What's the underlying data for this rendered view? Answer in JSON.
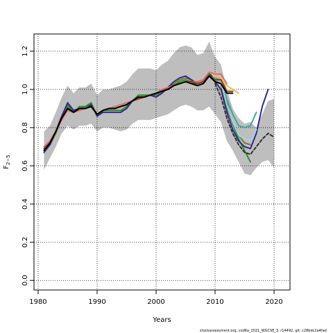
{
  "chart_data": {
    "type": "line",
    "title": "",
    "xlabel": "Years",
    "ylabel": "F",
    "ylabel_subscript": "2−5",
    "xlim": [
      1979.3,
      2022.7
    ],
    "ylim": [
      -0.05,
      1.29
    ],
    "x_ticks": [
      1980,
      1990,
      2000,
      2010,
      2020
    ],
    "y_ticks": [
      0.0,
      0.2,
      0.4,
      0.6,
      0.8,
      1.0,
      1.2
    ],
    "grid": true,
    "band": {
      "color": "#bebebe",
      "x": [
        1981,
        1982,
        1983,
        1984,
        1985,
        1986,
        1987,
        1988,
        1989,
        1990,
        1991,
        1992,
        1993,
        1994,
        1995,
        1996,
        1997,
        1998,
        1999,
        2000,
        2001,
        2002,
        2003,
        2004,
        2005,
        2006,
        2007,
        2008,
        2009,
        2010,
        2011,
        2012,
        2013,
        2014,
        2015,
        2016,
        2017,
        2018,
        2019,
        2020
      ],
      "upper": [
        0.78,
        0.81,
        0.88,
        0.96,
        1.02,
        0.98,
        1.01,
        1.01,
        1.03,
        0.97,
        1.0,
        1.0,
        1.01,
        1.02,
        1.04,
        1.08,
        1.11,
        1.11,
        1.11,
        1.1,
        1.13,
        1.15,
        1.19,
        1.22,
        1.23,
        1.22,
        1.18,
        1.19,
        1.25,
        1.17,
        1.13,
        1.0,
        0.9,
        0.85,
        0.82,
        0.83,
        0.8,
        0.87,
        0.94,
        0.95
      ],
      "lower": [
        0.58,
        0.64,
        0.7,
        0.77,
        0.81,
        0.79,
        0.81,
        0.81,
        0.82,
        0.78,
        0.8,
        0.8,
        0.79,
        0.78,
        0.79,
        0.82,
        0.84,
        0.84,
        0.84,
        0.85,
        0.86,
        0.87,
        0.89,
        0.91,
        0.92,
        0.91,
        0.89,
        0.89,
        0.91,
        0.87,
        0.83,
        0.73,
        0.68,
        0.62,
        0.56,
        0.55,
        0.59,
        0.62,
        0.63,
        0.59
      ]
    },
    "series": [
      {
        "color": "#7a7a2a",
        "x": [
          1981,
          1982,
          1983,
          1984,
          1985,
          1986,
          1987,
          1988,
          1989,
          1990,
          1991,
          1992,
          1993,
          1994,
          1995,
          1996,
          1997,
          1998,
          1999,
          2000,
          2001,
          2002,
          2003,
          2004,
          2005,
          2006,
          2007,
          2008,
          2009,
          2010,
          2011,
          2012,
          2013,
          2014,
          2015,
          2016
        ],
        "values": [
          0.67,
          0.71,
          0.77,
          0.85,
          0.91,
          0.88,
          0.9,
          0.91,
          0.92,
          0.87,
          0.89,
          0.9,
          0.9,
          0.91,
          0.92,
          0.94,
          0.96,
          0.96,
          0.97,
          0.98,
          0.99,
          1.01,
          1.03,
          1.05,
          1.06,
          1.05,
          1.03,
          1.04,
          1.08,
          1.05,
          1.03,
          0.9,
          0.82,
          0.76,
          0.72,
          0.71
        ]
      },
      {
        "color": "#2c8d2c",
        "x": [
          1981,
          1982,
          1983,
          1984,
          1985,
          1986,
          1987,
          1988,
          1989,
          1990,
          1991,
          1992,
          1993,
          1994,
          1995,
          1996,
          1997,
          1998,
          1999,
          2000,
          2001,
          2002,
          2003,
          2004,
          2005,
          2006,
          2007,
          2008,
          2009,
          2010,
          2011,
          2012,
          2013,
          2014,
          2015,
          2016
        ],
        "values": [
          0.68,
          0.72,
          0.78,
          0.86,
          0.92,
          0.88,
          0.91,
          0.91,
          0.93,
          0.86,
          0.89,
          0.89,
          0.89,
          0.89,
          0.91,
          0.94,
          0.97,
          0.97,
          0.97,
          0.97,
          0.99,
          1.0,
          1.02,
          1.04,
          1.05,
          1.04,
          1.02,
          1.03,
          1.08,
          1.05,
          1.04,
          0.93,
          0.82,
          0.74,
          0.68,
          0.62
        ]
      },
      {
        "color": "#2e2b8f",
        "x": [
          1981,
          1982,
          1983,
          1984,
          1985,
          1986,
          1987,
          1988,
          1989,
          1990,
          1991,
          1992,
          1993,
          1994,
          1995,
          1996,
          1997,
          1998,
          1999,
          2000,
          2001,
          2002,
          2003,
          2004,
          2005,
          2006,
          2007,
          2008,
          2009,
          2010,
          2011,
          2012,
          2013,
          2014,
          2015,
          2016,
          2017,
          2018,
          2019
        ],
        "values": [
          0.67,
          0.71,
          0.78,
          0.86,
          0.93,
          0.89,
          0.9,
          0.9,
          0.92,
          0.86,
          0.88,
          0.88,
          0.88,
          0.88,
          0.9,
          0.94,
          0.96,
          0.96,
          0.97,
          0.96,
          0.98,
          1.01,
          1.04,
          1.06,
          1.07,
          1.05,
          1.03,
          1.04,
          1.09,
          1.04,
          1.0,
          0.88,
          0.79,
          0.73,
          0.7,
          0.69,
          0.77,
          0.91,
          1.0
        ]
      },
      {
        "color": "#3aa6a6",
        "x": [
          2010,
          2011,
          2012,
          2013,
          2014,
          2015,
          2016,
          2017
        ],
        "values": [
          1.06,
          1.05,
          0.95,
          0.87,
          0.81,
          0.8,
          0.81,
          0.88
        ]
      },
      {
        "color": "#a8d0e6",
        "x": [
          2010,
          2011,
          2012,
          2013,
          2014,
          2015,
          2016,
          2017
        ],
        "values": [
          1.05,
          1.04,
          0.92,
          0.83,
          0.76,
          0.74,
          0.73,
          0.79
        ]
      },
      {
        "color": "#e8c060",
        "x": [
          2009,
          2010,
          2011,
          2012,
          2013,
          2014
        ],
        "values": [
          1.09,
          1.07,
          1.06,
          1.02,
          1.0,
          0.98
        ]
      },
      {
        "color": "#e06a6a",
        "x": [
          1981,
          1982,
          1983,
          1984,
          1985,
          1986,
          1987,
          1988,
          1989,
          1990,
          1991,
          1992,
          1993,
          1994,
          1995,
          1996,
          1997,
          1998,
          1999,
          2000,
          2001,
          2002,
          2003,
          2004,
          2005,
          2006,
          2007,
          2008,
          2009,
          2010,
          2011,
          2012
        ],
        "values": [
          0.7,
          0.73,
          0.78,
          0.84,
          0.89,
          0.88,
          0.89,
          0.9,
          0.91,
          0.87,
          0.89,
          0.9,
          0.91,
          0.92,
          0.93,
          0.94,
          0.95,
          0.96,
          0.97,
          0.98,
          1.0,
          1.01,
          1.02,
          1.03,
          1.04,
          1.04,
          1.04,
          1.05,
          1.09,
          1.08,
          1.08,
          1.03
        ]
      },
      {
        "color": "#8b3a0a",
        "x": [
          1981,
          1982,
          1983,
          1984,
          1985,
          1986,
          1987,
          1988,
          1989,
          1990,
          1991,
          1992,
          1993,
          1994,
          1995,
          1996,
          1997,
          1998,
          1999,
          2000,
          2001,
          2002,
          2003,
          2004,
          2005,
          2006,
          2007,
          2008,
          2009,
          2010,
          2011,
          2012,
          2013
        ],
        "values": [
          0.69,
          0.72,
          0.78,
          0.85,
          0.9,
          0.88,
          0.9,
          0.9,
          0.91,
          0.87,
          0.89,
          0.9,
          0.9,
          0.91,
          0.92,
          0.94,
          0.95,
          0.96,
          0.97,
          0.98,
          0.99,
          1.0,
          1.02,
          1.03,
          1.04,
          1.04,
          1.03,
          1.04,
          1.07,
          1.05,
          1.05,
          0.99,
          0.99
        ]
      },
      {
        "color": "#000000",
        "x": [
          1981,
          1982,
          1983,
          1984,
          1985,
          1986,
          1987,
          1988,
          1989,
          1990,
          1991,
          1992,
          1993,
          1994,
          1995,
          1996,
          1997,
          1998,
          1999,
          2000,
          2001,
          2002,
          2003,
          2004,
          2005,
          2006,
          2007,
          2008,
          2009,
          2010,
          2011,
          2012,
          2013
        ],
        "values": [
          0.68,
          0.72,
          0.78,
          0.85,
          0.9,
          0.88,
          0.9,
          0.9,
          0.91,
          0.87,
          0.89,
          0.9,
          0.9,
          0.91,
          0.92,
          0.94,
          0.96,
          0.96,
          0.97,
          0.98,
          0.99,
          1.0,
          1.02,
          1.03,
          1.04,
          1.03,
          1.02,
          1.03,
          1.07,
          1.04,
          1.03,
          0.98,
          0.98
        ]
      },
      {
        "color": "#303030",
        "dashed": true,
        "x": [
          2010,
          2011,
          2012,
          2013,
          2014,
          2015,
          2016,
          2017,
          2018,
          2019,
          2020
        ],
        "values": [
          1.03,
          0.96,
          0.85,
          0.77,
          0.71,
          0.67,
          0.66,
          0.7,
          0.74,
          0.77,
          0.75
        ]
      }
    ]
  },
  "footer": "stockassessment.org, cod6a_2021_WGCSE_3, r14492, git: c28bdc2a4fad"
}
